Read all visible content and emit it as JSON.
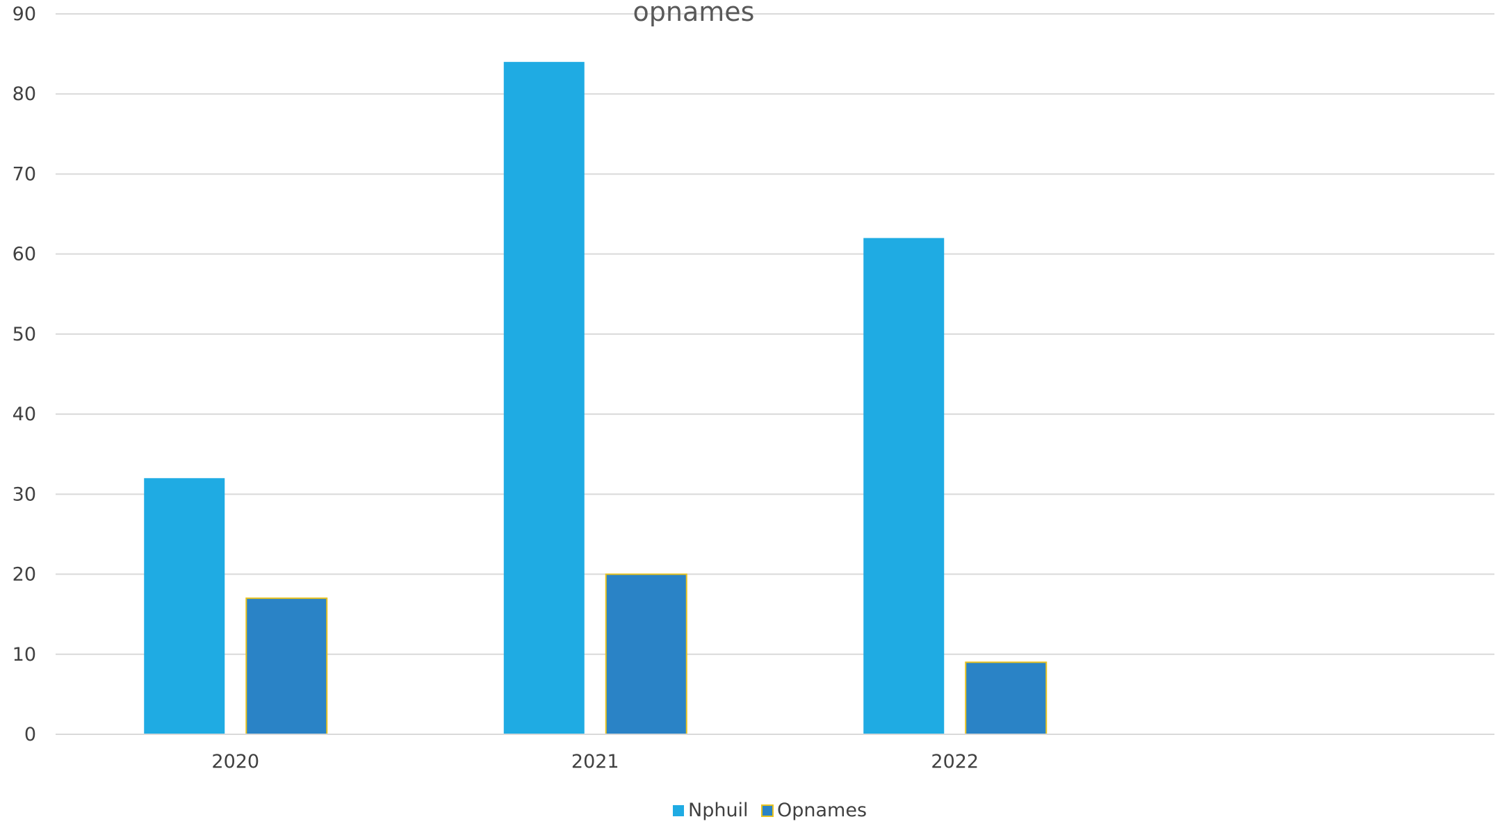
{
  "chart_data": {
    "type": "bar",
    "title": "opnames",
    "categories": [
      "2020",
      "2021",
      "2022",
      ""
    ],
    "series": [
      {
        "name": "Nphuil",
        "values": [
          32,
          84,
          62,
          null
        ],
        "color": "#1FABE3"
      },
      {
        "name": "Opnames",
        "values": [
          17,
          20,
          9,
          null
        ],
        "color": "#2A83C6",
        "border": "#E8C21F"
      }
    ],
    "ylim": [
      0,
      90
    ],
    "yticks": [
      "0",
      "10",
      "20",
      "30",
      "40",
      "50",
      "60",
      "70",
      "80",
      "90"
    ],
    "xlabel": "",
    "ylabel": "",
    "grid": true,
    "legend_position": "bottom"
  }
}
